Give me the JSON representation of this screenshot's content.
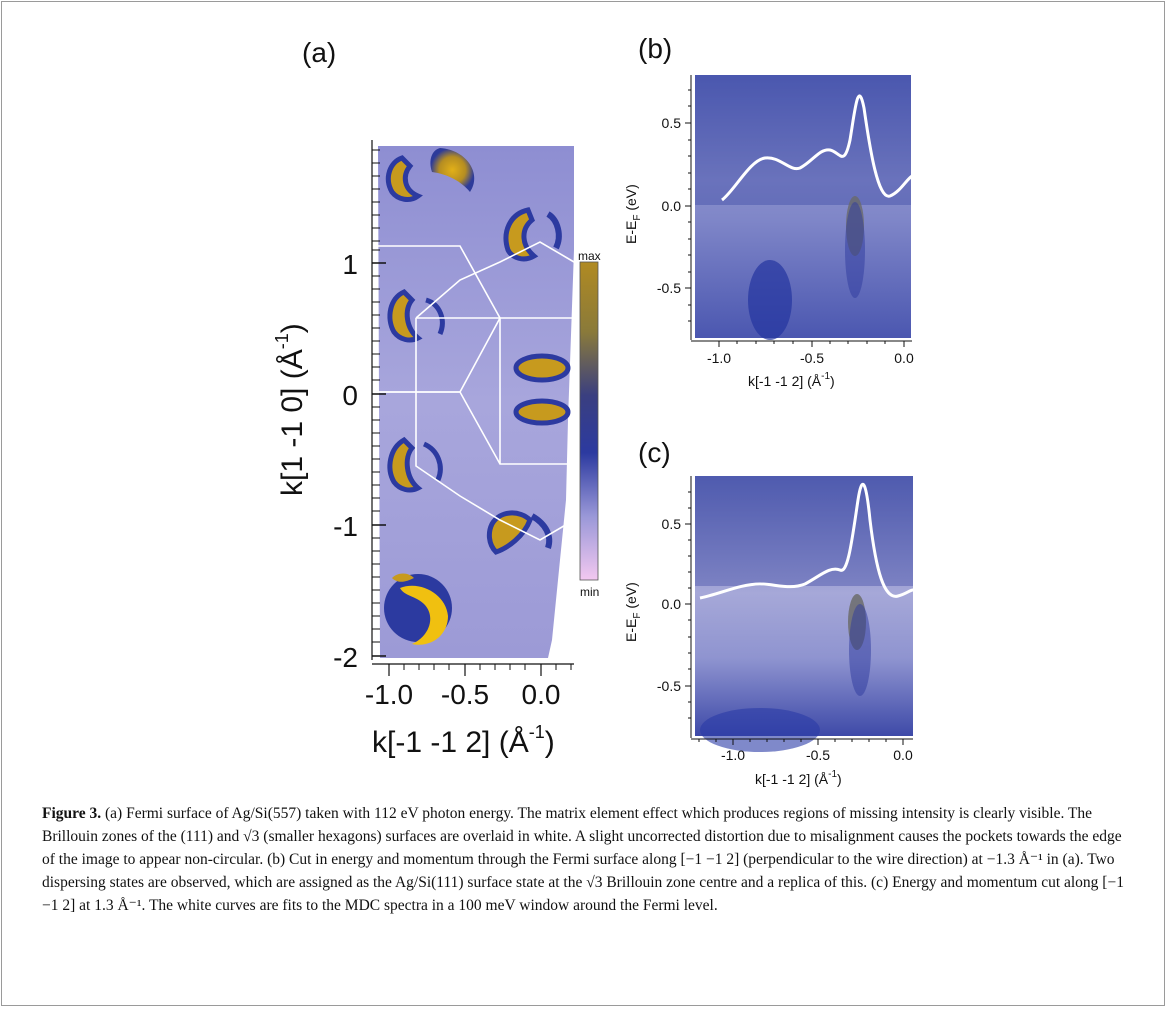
{
  "panels": {
    "a": {
      "label": "(a)",
      "xlabel": "k[-1 -1 2] (Å",
      "xlabel_sup": "-1",
      "xlabel_end": ")",
      "ylabel": "k[1 -1 0] (Å",
      "ylabel_sup": "-1",
      "ylabel_end": ")",
      "xticks": [
        "-1.0",
        "-0.5",
        "0.0"
      ],
      "yticks": [
        "1",
        "0",
        "-1",
        "-2"
      ],
      "colorbar_max": "max",
      "colorbar_min": "min"
    },
    "b": {
      "label": "(b)",
      "xlabel": "k[-1 -1 2] (Å",
      "xlabel_sup": "-1",
      "xlabel_end": ")",
      "ylabel": "E-E",
      "ylabel_sub": "F",
      "ylabel_end": " (eV)",
      "xticks": [
        "-1.0",
        "-0.5",
        "0.0"
      ],
      "yticks": [
        "0.5",
        "0.0",
        "-0.5"
      ]
    },
    "c": {
      "label": "(c)",
      "xlabel": "k[-1 -1 2] (Å",
      "xlabel_sup": "-1",
      "xlabel_end": ")",
      "ylabel": "E-E",
      "ylabel_sub": "F",
      "ylabel_end": " (eV)",
      "xticks": [
        "-1.0",
        "-0.5",
        "0.0"
      ],
      "yticks": [
        "0.5",
        "0.0",
        "-0.5"
      ]
    }
  },
  "caption": {
    "label": "Figure 3.",
    "text": " (a) Fermi surface of Ag/Si(557) taken with 112 eV photon energy. The matrix element effect which produces regions of missing intensity is clearly visible. The Brillouin zones of the (111) and √3 (smaller hexagons) surfaces are overlaid in white. A slight uncorrected distortion due to misalignment causes the pockets towards the edge of the image to appear non-circular. (b) Cut in energy and momentum through the Fermi surface along [−1 −1 2] (perpendicular to the wire direction) at −1.3 Å⁻¹ in (a). Two dispersing states are observed, which are assigned as the Ag/Si(111) surface state at the √3 Brillouin zone centre and a replica of this. (c) Energy and momentum cut along [−1 −1 2] at 1.3 Å⁻¹. The white curves are fits to the MDC spectra in a 100 meV window around the Fermi level."
  },
  "colors": {
    "map_base": "#9a9ad6",
    "map_deep": "#2f3fa8",
    "pocket": "#c79a1e",
    "colorbar_top": "#b08a22",
    "colorbar_bottom": "#f2c8f0"
  }
}
